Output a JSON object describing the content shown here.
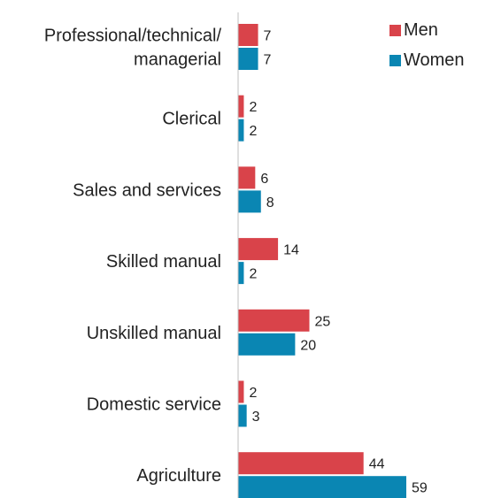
{
  "chart_data": {
    "type": "bar",
    "orientation": "horizontal",
    "categories": [
      [
        "Professional/technical/",
        "managerial"
      ],
      [
        "Clerical"
      ],
      [
        "Sales and services"
      ],
      [
        "Skilled manual"
      ],
      [
        "Unskilled manual"
      ],
      [
        "Domestic service"
      ],
      [
        "Agriculture"
      ]
    ],
    "series": [
      {
        "name": "Men",
        "color": "#d9434a",
        "values": [
          7,
          2,
          6,
          14,
          25,
          2,
          44
        ]
      },
      {
        "name": "Women",
        "color": "#0a86b3",
        "values": [
          7,
          2,
          8,
          2,
          20,
          3,
          59
        ]
      }
    ],
    "title": "",
    "xlabel": "",
    "ylabel": "",
    "xlim": [
      0,
      59
    ],
    "grid": false,
    "legend": "top-right",
    "show_data_labels": true,
    "axis_color": "#bfbfbf"
  }
}
